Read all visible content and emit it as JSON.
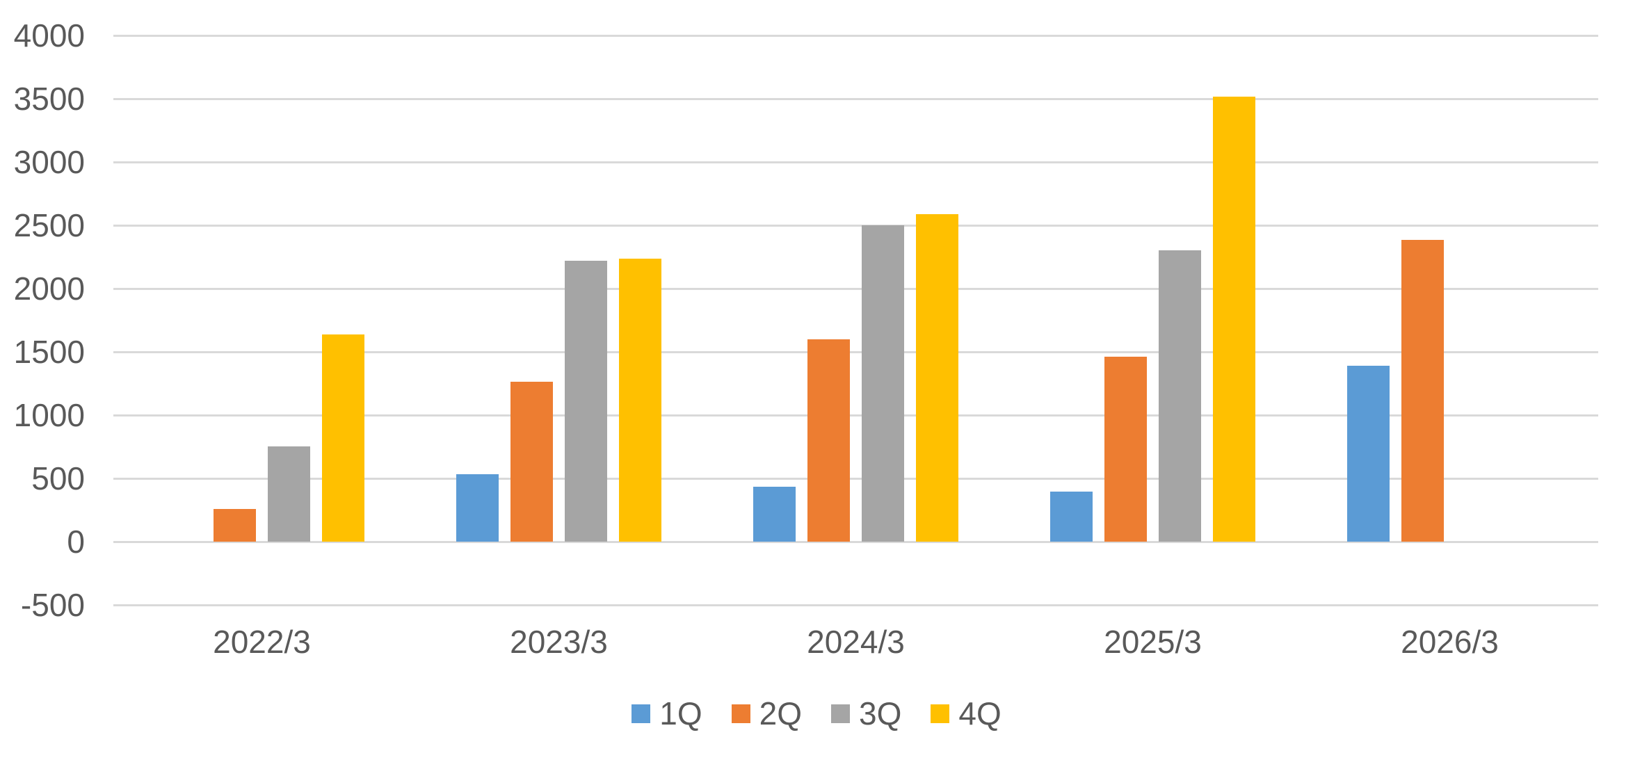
{
  "chart_data": {
    "type": "bar",
    "title": "",
    "categories": [
      "2022/3",
      "2023/3",
      "2024/3",
      "2025/3",
      "2026/3"
    ],
    "series": [
      {
        "name": "1Q",
        "color": "#5B9BD5",
        "values": [
          null,
          535,
          435,
          395,
          1390
        ]
      },
      {
        "name": "2Q",
        "color": "#ED7D31",
        "values": [
          260,
          1265,
          1600,
          1460,
          2385
        ]
      },
      {
        "name": "3Q",
        "color": "#A5A5A5",
        "values": [
          755,
          2220,
          2500,
          2300,
          null
        ]
      },
      {
        "name": "4Q",
        "color": "#FFC000",
        "values": [
          1640,
          2235,
          2590,
          3515,
          null
        ]
      }
    ],
    "xlabel": "",
    "ylabel": "",
    "ylim": [
      -500,
      4000
    ],
    "ytick_step": 500,
    "yticks": [
      "4000",
      "3500",
      "3000",
      "2500",
      "2000",
      "1500",
      "1000",
      "500",
      "0",
      "-500"
    ],
    "grid": "horizontal",
    "gridline_color": "#D9D9D9",
    "label_color": "#595959",
    "background_color": "#FFFFFF",
    "legend_position": "bottom-center",
    "legend_labels": [
      "1Q",
      "2Q",
      "3Q",
      "4Q"
    ]
  }
}
